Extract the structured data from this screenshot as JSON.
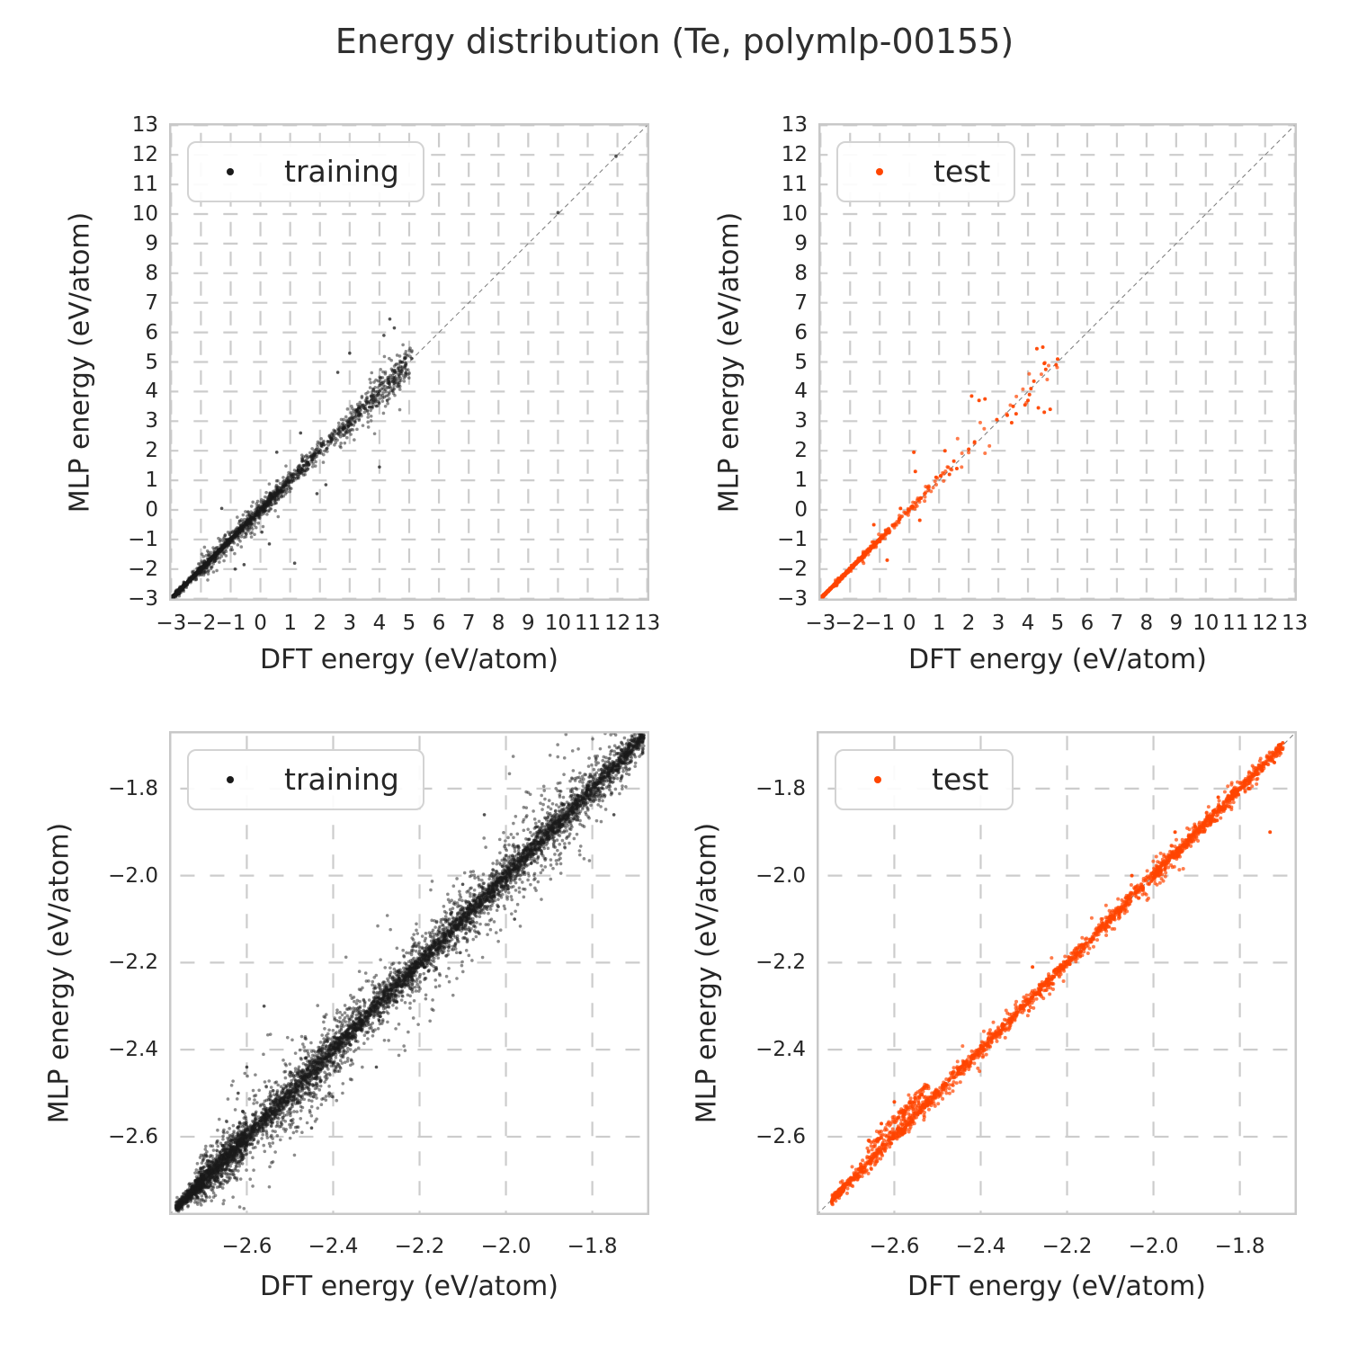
{
  "title": "Energy distribution (Te, polymlp-00155)",
  "styles": {
    "background": "#ffffff",
    "text": "#262626",
    "title_color": "#2f2f2f",
    "grid": "#cccccc",
    "spine": "#c8c8c8",
    "identity": "#7a7a7a",
    "legend_border": "#d3d3d3",
    "training": "#1a1a1a",
    "test": "#ff4500"
  },
  "chart_data": [
    {
      "name": "training-overview",
      "type": "scatter",
      "series": "training",
      "legend_label": "training",
      "color_key": "training",
      "marker_alpha": 0.5,
      "marker_radius": 1.8,
      "xlabel": "DFT energy (eV/atom)",
      "ylabel": "MLP energy (eV/atom)",
      "xlim": [
        -3.07,
        13.07
      ],
      "ylim": [
        -3.07,
        13.07
      ],
      "xticks": {
        "values": [
          -3,
          -2,
          -1,
          0,
          1,
          2,
          3,
          4,
          5,
          6,
          7,
          8,
          9,
          10,
          11,
          12,
          13
        ],
        "decimals": 0
      },
      "yticks": {
        "values": [
          -3,
          -2,
          -1,
          0,
          1,
          2,
          3,
          4,
          5,
          6,
          7,
          8,
          9,
          10,
          11,
          12,
          13
        ],
        "decimals": 0
      },
      "identity_line": true,
      "grid": true,
      "legend_position": "upper-left",
      "seed": 11,
      "bands": [
        {
          "x0": -2.95,
          "x1": -0.6,
          "n": 1000,
          "pow": 1.7,
          "sd": 0.02
        },
        {
          "x0": -2.85,
          "x1": 0.8,
          "n": 500,
          "pow": 1.5,
          "sd": 0.06
        },
        {
          "x0": -2.3,
          "x1": 2.0,
          "n": 300,
          "pow": 1.2,
          "sd": 0.15
        },
        {
          "x0": -2.0,
          "x1": 0.6,
          "n": 160,
          "pow": 1.0,
          "sd": 0.28
        },
        {
          "x0": -0.5,
          "x1": 3.6,
          "n": 330,
          "pow": 1.1,
          "sd": 0.16
        },
        {
          "x0": 2.6,
          "x1": 5.1,
          "n": 260,
          "pow": 1.0,
          "sd": 0.28
        },
        {
          "x0": 3.6,
          "x1": 4.9,
          "n": 80,
          "pow": 1.0,
          "sd": 0.45
        }
      ],
      "outliers": [
        [
          10.0,
          10.05
        ],
        [
          11.95,
          11.95
        ],
        [
          3.0,
          5.3
        ],
        [
          2.6,
          4.65
        ],
        [
          4.0,
          1.45
        ],
        [
          1.15,
          -1.8
        ],
        [
          0.3,
          -1.15
        ],
        [
          -0.55,
          -1.85
        ],
        [
          -1.3,
          0.05
        ],
        [
          0.55,
          1.95
        ],
        [
          1.35,
          2.6
        ],
        [
          4.35,
          6.45
        ],
        [
          4.5,
          6.15
        ],
        [
          4.15,
          5.9
        ],
        [
          2.2,
          0.85
        ],
        [
          1.9,
          0.55
        ],
        [
          -0.85,
          -2.0
        ],
        [
          0.05,
          -0.75
        ]
      ]
    },
    {
      "name": "test-overview",
      "type": "scatter",
      "series": "test",
      "legend_label": "test",
      "color_key": "test",
      "marker_alpha": 0.7,
      "marker_radius": 2.0,
      "xlabel": "DFT energy (eV/atom)",
      "ylabel": "MLP energy (eV/atom)",
      "xlim": [
        -3.07,
        13.07
      ],
      "ylim": [
        -3.07,
        13.07
      ],
      "xticks": {
        "values": [
          -3,
          -2,
          -1,
          0,
          1,
          2,
          3,
          4,
          5,
          6,
          7,
          8,
          9,
          10,
          11,
          12,
          13
        ],
        "decimals": 0
      },
      "yticks": {
        "values": [
          -3,
          -2,
          -1,
          0,
          1,
          2,
          3,
          4,
          5,
          6,
          7,
          8,
          9,
          10,
          11,
          12,
          13
        ],
        "decimals": 0
      },
      "identity_line": true,
      "grid": true,
      "legend_position": "upper-left",
      "seed": 23,
      "bands": [
        {
          "x0": -2.95,
          "x1": -0.9,
          "n": 700,
          "pow": 1.6,
          "sd": 0.012
        },
        {
          "x0": -2.5,
          "x1": 0.4,
          "n": 170,
          "pow": 1.4,
          "sd": 0.045
        },
        {
          "x0": -1.6,
          "x1": 1.5,
          "n": 70,
          "pow": 1.2,
          "sd": 0.1
        },
        {
          "x0": 1.5,
          "x1": 5.0,
          "n": 20,
          "pow": 1.0,
          "sd": 0.3
        }
      ],
      "outliers": [
        [
          4.3,
          5.45
        ],
        [
          4.5,
          5.5
        ],
        [
          4.55,
          4.95
        ],
        [
          4.6,
          4.75
        ],
        [
          4.2,
          4.35
        ],
        [
          4.1,
          4.1
        ],
        [
          4.05,
          3.9
        ],
        [
          4.0,
          3.7
        ],
        [
          3.9,
          3.55
        ],
        [
          4.35,
          3.45
        ],
        [
          4.55,
          3.3
        ],
        [
          4.75,
          3.4
        ],
        [
          3.6,
          3.25
        ],
        [
          3.5,
          3.5
        ],
        [
          3.3,
          3.2
        ],
        [
          3.45,
          2.95
        ],
        [
          2.95,
          3.05
        ],
        [
          2.1,
          3.85
        ],
        [
          2.35,
          3.7
        ],
        [
          2.55,
          3.75
        ],
        [
          5.0,
          5.1
        ],
        [
          4.95,
          4.9
        ],
        [
          1.2,
          2.0
        ],
        [
          1.5,
          1.65
        ],
        [
          2.0,
          2.05
        ],
        [
          0.15,
          1.95
        ],
        [
          0.2,
          1.3
        ],
        [
          0.9,
          1.1
        ],
        [
          1.05,
          1.15
        ],
        [
          -0.3,
          0.05
        ],
        [
          -0.75,
          -1.7
        ],
        [
          0.35,
          -0.35
        ],
        [
          -1.2,
          -0.5
        ],
        [
          1.35,
          1.2
        ],
        [
          1.6,
          1.4
        ],
        [
          2.2,
          2.3
        ]
      ]
    },
    {
      "name": "training-zoom",
      "type": "scatter",
      "series": "training",
      "legend_label": "training",
      "color_key": "training",
      "marker_alpha": 0.5,
      "marker_radius": 1.8,
      "xlabel": "DFT energy (eV/atom)",
      "ylabel": "MLP energy (eV/atom)",
      "xlim": [
        -2.78,
        -1.668
      ],
      "ylim": [
        -2.78,
        -1.668
      ],
      "xticks": {
        "values": [
          -2.6,
          -2.4,
          -2.2,
          -2.0,
          -1.8
        ],
        "decimals": 1
      },
      "yticks": {
        "values": [
          -2.6,
          -2.4,
          -2.2,
          -2.0,
          -1.8
        ],
        "decimals": 1
      },
      "identity_line": true,
      "grid": true,
      "legend_position": "upper-left",
      "seed": 37,
      "bands": [
        {
          "x0": -2.74,
          "x1": -1.68,
          "n": 3000,
          "pow": 1.0,
          "sd": 0.011
        },
        {
          "x0": -2.71,
          "x1": -1.68,
          "n": 2100,
          "pow": 1.0,
          "sd": 0.032
        },
        {
          "x0": -2.66,
          "x1": -1.72,
          "n": 650,
          "pow": 1.0,
          "sd": 0.07
        },
        {
          "x0": -2.72,
          "x1": -2.6,
          "n": 500,
          "pow": 1.0,
          "sd": 0.022
        },
        {
          "x0": -2.765,
          "x1": -2.7,
          "n": 350,
          "pow": 1.0,
          "sd": 0.007
        },
        {
          "x0": -2.55,
          "x1": -2.35,
          "n": 150,
          "pow": 1.0,
          "sd": 0.045,
          "dy": -0.03
        }
      ],
      "outliers": [
        [
          -2.05,
          -1.86
        ],
        [
          -2.56,
          -2.3
        ],
        [
          -2.6,
          -2.44
        ],
        [
          -2.62,
          -2.5
        ],
        [
          -2.1,
          -2.02
        ],
        [
          -1.98,
          -2.1
        ],
        [
          -2.3,
          -2.44
        ],
        [
          -1.75,
          -1.86
        ],
        [
          -2.45,
          -2.58
        ]
      ]
    },
    {
      "name": "test-zoom",
      "type": "scatter",
      "series": "test",
      "legend_label": "test",
      "color_key": "test",
      "marker_alpha": 0.7,
      "marker_radius": 2.0,
      "xlabel": "DFT energy (eV/atom)",
      "ylabel": "MLP energy (eV/atom)",
      "xlim": [
        -2.78,
        -1.668
      ],
      "ylim": [
        -2.78,
        -1.668
      ],
      "xticks": {
        "values": [
          -2.6,
          -2.4,
          -2.2,
          -2.0,
          -1.8
        ],
        "decimals": 1
      },
      "yticks": {
        "values": [
          -2.6,
          -2.4,
          -2.2,
          -2.0,
          -1.8
        ],
        "decimals": 1
      },
      "identity_line": true,
      "grid": true,
      "legend_position": "upper-left",
      "seed": 51,
      "bands": [
        {
          "x0": -2.73,
          "x1": -1.7,
          "n": 1500,
          "pow": 1.0,
          "sd": 0.007
        },
        {
          "x0": -2.7,
          "x1": -1.9,
          "n": 320,
          "pow": 1.0,
          "sd": 0.018
        },
        {
          "x0": -2.67,
          "x1": -2.52,
          "n": 130,
          "pow": 1.0,
          "sd": 0.009,
          "dy": 0.035
        },
        {
          "x0": -2.745,
          "x1": -2.715,
          "n": 90,
          "pow": 1.0,
          "sd": 0.005
        },
        {
          "x0": -2.0,
          "x1": -1.75,
          "n": 120,
          "pow": 1.0,
          "sd": 0.015
        }
      ],
      "outliers": [
        [
          -1.73,
          -1.9
        ],
        [
          -1.78,
          -1.8
        ],
        [
          -1.72,
          -1.74
        ],
        [
          -1.85,
          -1.82
        ],
        [
          -1.95,
          -1.9
        ],
        [
          -2.28,
          -2.21
        ],
        [
          -2.6,
          -2.52
        ],
        [
          -2.63,
          -2.57
        ],
        [
          -2.05,
          -2.0
        ],
        [
          -1.71,
          -1.7
        ]
      ]
    }
  ]
}
